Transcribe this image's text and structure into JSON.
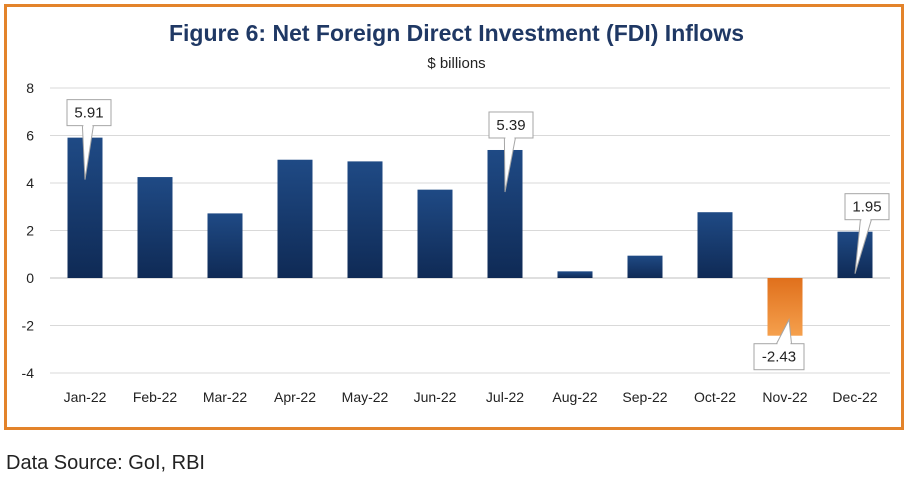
{
  "chart_data": {
    "type": "bar",
    "title": "Figure 6: Net Foreign Direct Investment (FDI) Inflows",
    "subtitle": "$ billions",
    "categories": [
      "Jan-22",
      "Feb-22",
      "Mar-22",
      "Apr-22",
      "May-22",
      "Jun-22",
      "Jul-22",
      "Aug-22",
      "Sep-22",
      "Oct-22",
      "Nov-22",
      "Dec-22"
    ],
    "values": [
      5.91,
      4.25,
      2.72,
      4.98,
      4.91,
      3.72,
      5.39,
      0.28,
      0.94,
      2.77,
      -2.43,
      1.95
    ],
    "data_labels": [
      {
        "index": 0,
        "text": "5.91"
      },
      {
        "index": 6,
        "text": "5.39"
      },
      {
        "index": 10,
        "text": "-2.43"
      },
      {
        "index": 11,
        "text": "1.95"
      }
    ],
    "ylim": [
      -4,
      8
    ],
    "yticks": [
      -4,
      -2,
      0,
      2,
      4,
      6,
      8
    ],
    "grid": true,
    "colors": {
      "positive": "#1b3a6b",
      "negative": "#e67e22",
      "frame": "#e3832a",
      "title": "#1f3864"
    }
  },
  "source": "Data Source: GoI, RBI"
}
